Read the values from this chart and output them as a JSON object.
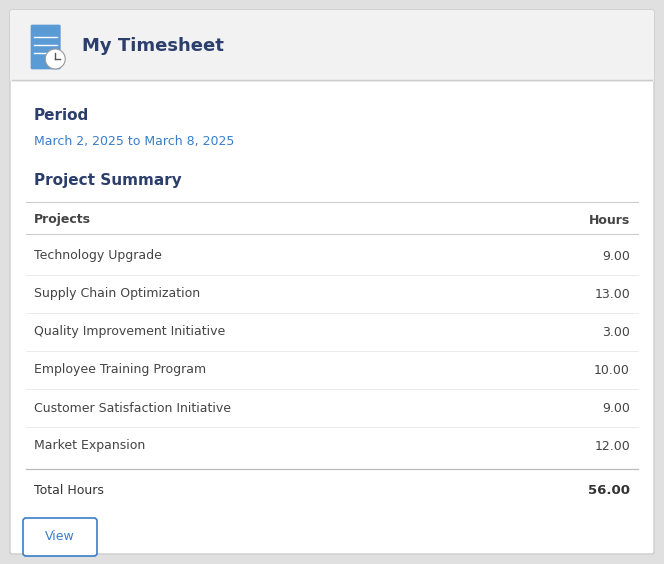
{
  "header_title": "My Timesheet",
  "header_bg": "#f2f2f2",
  "body_bg": "#ffffff",
  "outer_bg": "#e0e0e0",
  "border_color": "#cccccc",
  "period_label": "Period",
  "period_value": "March 2, 2025 to March 8, 2025",
  "section_title": "Project Summary",
  "col_header_project": "Projects",
  "col_header_hours": "Hours",
  "projects": [
    "Technology Upgrade",
    "Supply Chain Optimization",
    "Quality Improvement Initiative",
    "Employee Training Program",
    "Customer Satisfaction Initiative",
    "Market Expansion"
  ],
  "hours": [
    9.0,
    13.0,
    3.0,
    10.0,
    9.0,
    12.0
  ],
  "total_label": "Total Hours",
  "total_hours": 56.0,
  "button_label": "View",
  "heading_color": "#2c3e6b",
  "period_text_color": "#3a7dc9",
  "section_color": "#2c3e6b",
  "row_text_color": "#444444",
  "total_text_color": "#333333",
  "button_text_color": "#3a7dc9",
  "button_border_color": "#3a7dc9",
  "header_text_color": "#2c3e6b",
  "fig_width": 6.64,
  "fig_height": 5.64,
  "dpi": 100
}
